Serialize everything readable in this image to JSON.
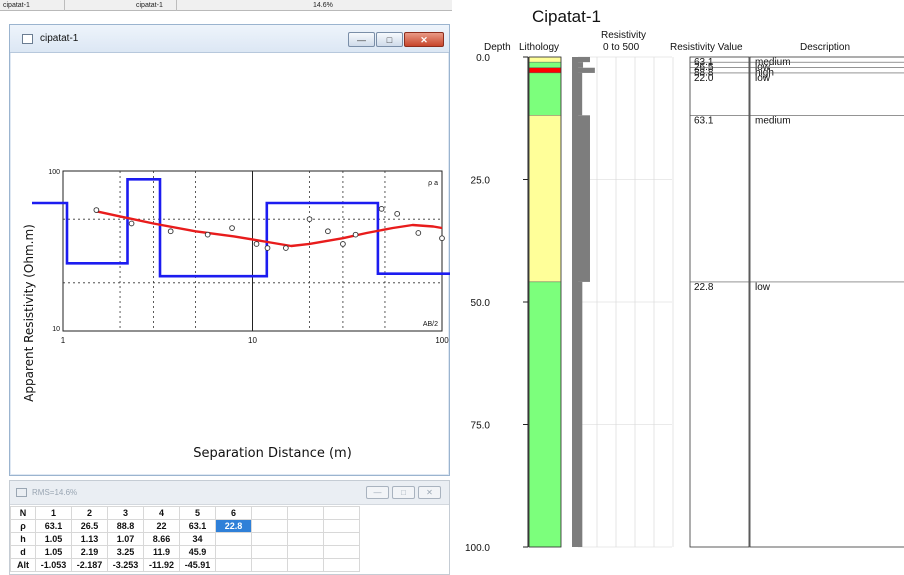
{
  "top_bar": {
    "cells": [
      "cipatat-1",
      "cipatat-1",
      "14.6%"
    ]
  },
  "sounding_window": {
    "title": "cipatat-1",
    "x_axis_label": "Separation Distance (m)",
    "y_axis_label": "Apparent Resistivity (Ohm.m)",
    "x_ticks": [
      "1",
      "10",
      "100"
    ],
    "y_ticks": [
      "100",
      "10"
    ],
    "corner_label": "AB/2",
    "legend_label": "ρ a"
  },
  "chart_data": {
    "type": "line",
    "xscale": "log",
    "yscale": "log",
    "xlim": [
      1,
      100
    ],
    "ylim": [
      10,
      100
    ],
    "xlabel": "Separation Distance (m)",
    "ylabel": "Apparent Resistivity (Ohm.m)",
    "observed": {
      "x": [
        1.5,
        2.3,
        3.7,
        5.8,
        7.8,
        10.5,
        12,
        15,
        20,
        25,
        30,
        35,
        48,
        58,
        75,
        100
      ],
      "y": [
        57,
        47,
        42,
        40,
        44,
        35,
        33,
        33,
        50,
        42,
        35,
        40,
        58,
        54,
        41,
        38
      ]
    },
    "calculated": {
      "x": [
        1.5,
        2,
        3,
        5,
        8,
        12,
        16,
        20,
        30,
        40,
        55,
        70,
        90,
        100
      ],
      "y": [
        56,
        52,
        47,
        42,
        39,
        36,
        34,
        35,
        38,
        41,
        44,
        46,
        45,
        44
      ]
    },
    "model": {
      "x": [
        1,
        1.05,
        1.05,
        2.19,
        2.19,
        3.25,
        3.25,
        11.9,
        11.9,
        45.9,
        45.9,
        100
      ],
      "y": [
        63.1,
        63.1,
        26.5,
        26.5,
        88.8,
        88.8,
        22,
        22,
        63.1,
        63.1,
        22.8,
        22.8
      ]
    }
  },
  "table_window": {
    "title": "RMS=14.6%",
    "rows": [
      {
        "head": "N",
        "cells": [
          "1",
          "2",
          "3",
          "4",
          "5",
          "6"
        ]
      },
      {
        "head": "ρ",
        "cells": [
          "63.1",
          "26.5",
          "88.8",
          "22",
          "63.1",
          "22.8"
        ]
      },
      {
        "head": "h",
        "cells": [
          "1.05",
          "1.13",
          "1.07",
          "8.66",
          "34",
          ""
        ]
      },
      {
        "head": "d",
        "cells": [
          "1.05",
          "2.19",
          "3.25",
          "11.9",
          "45.9",
          ""
        ]
      },
      {
        "head": "Alt",
        "cells": [
          "-1.053",
          "-2.187",
          "-3.253",
          "-11.92",
          "-45.91",
          ""
        ]
      }
    ]
  },
  "log_plot": {
    "title": "Cipatat-1",
    "headers": {
      "depth": "Depth",
      "lithology": "Lithology",
      "resistivity": "Resistivity",
      "resistivity_range": "0 to 500",
      "resistivity_value": "Resistivity Value",
      "description": "Description"
    },
    "depth_ticks": [
      "0.0",
      "25.0",
      "50.0",
      "75.0",
      "100.0"
    ],
    "depth_max": 100,
    "layers": [
      {
        "top": 0,
        "bottom": 1.05,
        "rho": 63.1,
        "value": "63.1",
        "desc": "medium",
        "color": "#ffff99"
      },
      {
        "top": 1.05,
        "bottom": 2.19,
        "rho": 26.5,
        "value": "26.5",
        "desc": "low",
        "color": "#7cff7c"
      },
      {
        "top": 2.19,
        "bottom": 3.25,
        "rho": 88.8,
        "value": "88.8",
        "desc": "high",
        "color": "#ff0000"
      },
      {
        "top": 3.25,
        "bottom": 11.9,
        "rho": 22,
        "value": "22.0",
        "desc": "low",
        "color": "#7cff7c"
      },
      {
        "top": 11.9,
        "bottom": 45.9,
        "rho": 63.1,
        "value": "63.1",
        "desc": "medium",
        "color": "#ffff99"
      },
      {
        "top": 45.9,
        "bottom": 100,
        "rho": 22.8,
        "value": "22.8",
        "desc": "low",
        "color": "#7cff7c"
      }
    ]
  }
}
